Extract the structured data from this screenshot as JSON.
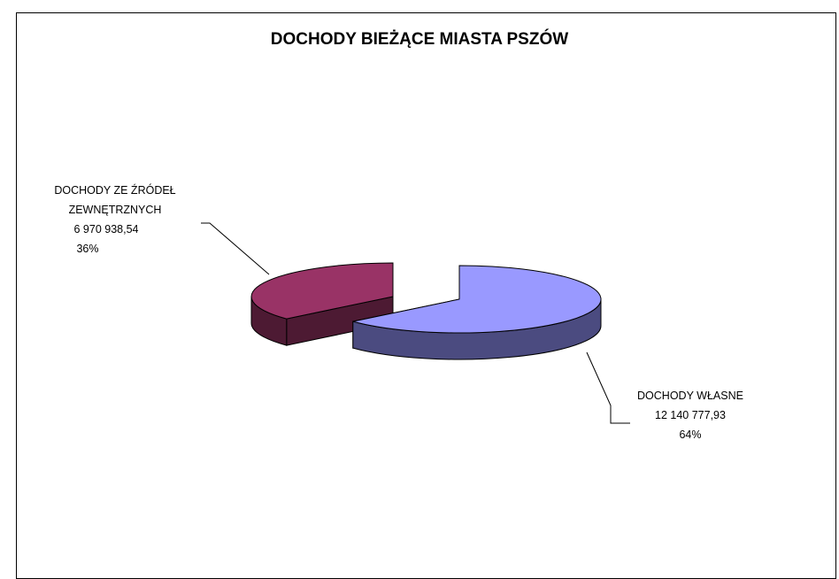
{
  "chart_data": {
    "type": "pie",
    "title": "DOCHODY BIEŻĄCE MIASTA PSZÓW",
    "slices": [
      {
        "label_lines": [
          "DOCHODY WŁASNE"
        ],
        "value_text": "12 140 777,93",
        "value": 12140777.93,
        "percent": "64%",
        "color": "#9999ff",
        "side_color": "#4b4b80"
      },
      {
        "label_lines": [
          "DOCHODY ZE ŹRÓDEŁ",
          "ZEWNĘTRZNYCH"
        ],
        "value_text": "6 970 938,54",
        "value": 6970938.54,
        "percent": "36%",
        "color": "#993366",
        "side_color": "#4d1a33"
      }
    ],
    "exploded": true,
    "legend": "none"
  }
}
